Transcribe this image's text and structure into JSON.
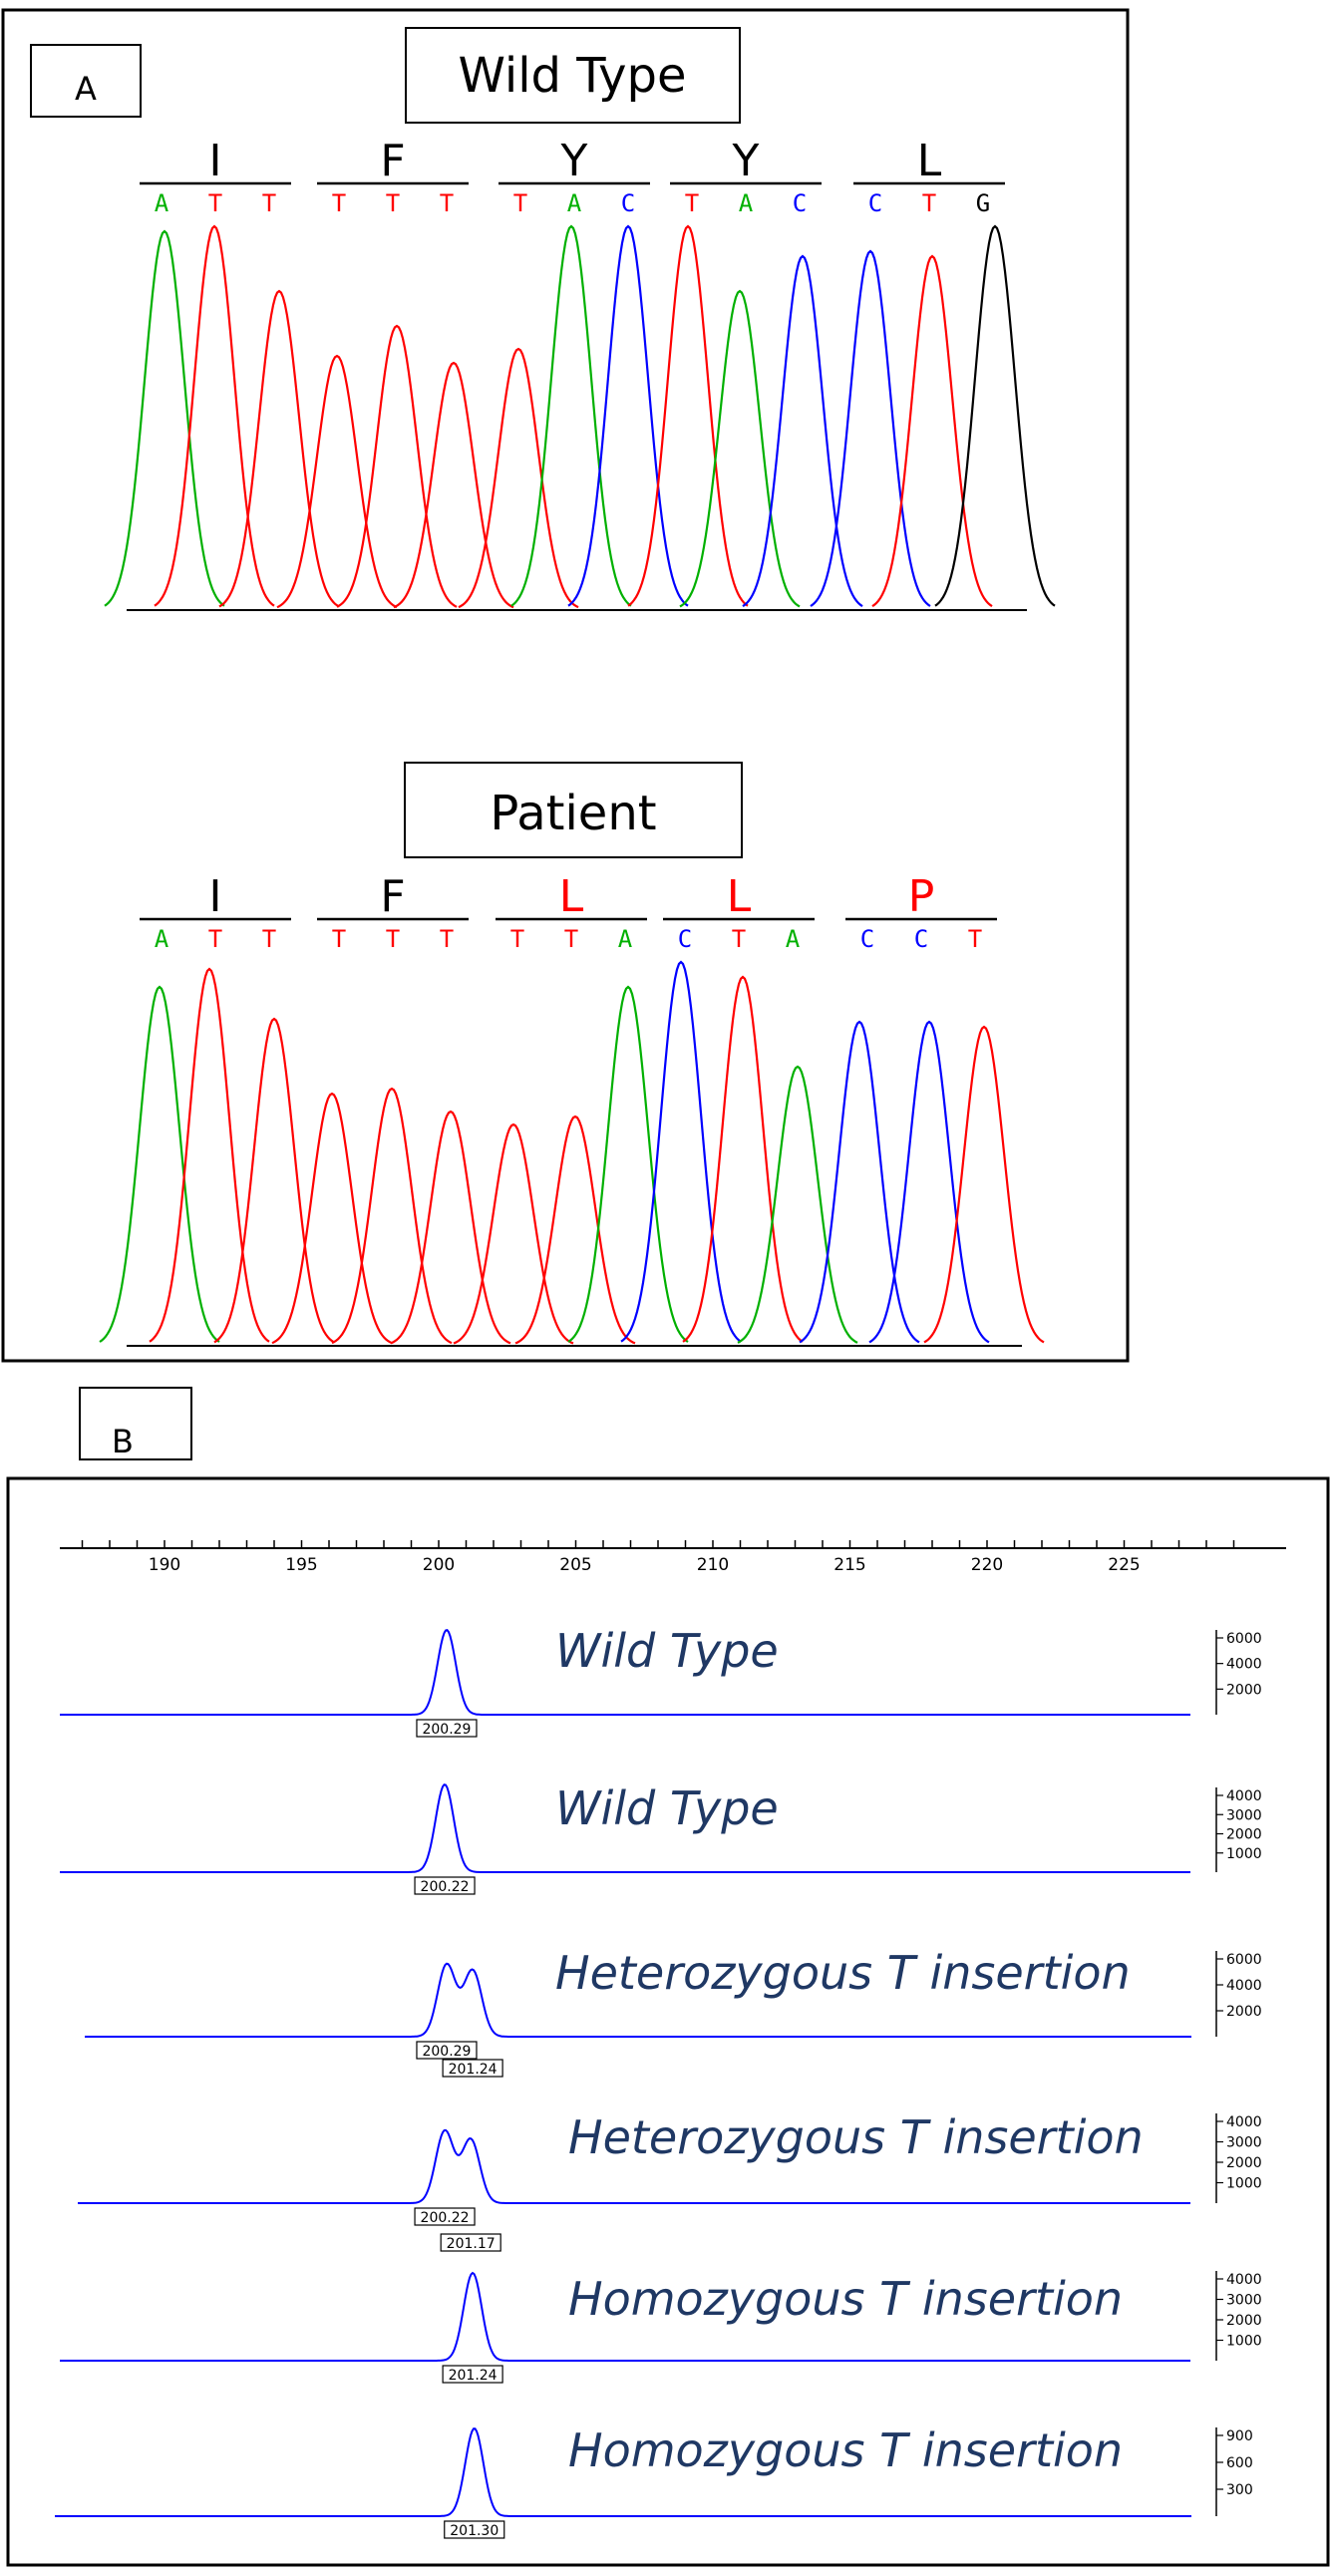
{
  "panel_a": {
    "label": "A",
    "wild_type": {
      "title": "Wild Type",
      "codons": [
        {
          "aa": "I",
          "color": "#000000",
          "bases": [
            "A",
            "T",
            "T"
          ]
        },
        {
          "aa": "F",
          "color": "#000000",
          "bases": [
            "T",
            "T",
            "T"
          ]
        },
        {
          "aa": "Y",
          "color": "#000000",
          "bases": [
            "T",
            "A",
            "C"
          ]
        },
        {
          "aa": "Y",
          "color": "#000000",
          "bases": [
            "T",
            "A",
            "C"
          ]
        },
        {
          "aa": "L",
          "color": "#000000",
          "bases": [
            "C",
            "T",
            "G"
          ]
        }
      ]
    },
    "patient": {
      "title": "Patient",
      "codons": [
        {
          "aa": "I",
          "color": "#000000",
          "bases": [
            "A",
            "T",
            "T"
          ]
        },
        {
          "aa": "F",
          "color": "#000000",
          "bases": [
            "T",
            "T",
            "T"
          ]
        },
        {
          "aa": "L",
          "color": "#ff0000",
          "bases": [
            "T",
            "T",
            "A"
          ]
        },
        {
          "aa": "L",
          "color": "#ff0000",
          "bases": [
            "C",
            "T",
            "A"
          ]
        },
        {
          "aa": "P",
          "color": "#ff0000",
          "bases": [
            "C",
            "C",
            "T"
          ]
        }
      ]
    },
    "base_colors": {
      "A": "#00b000",
      "T": "#ff0000",
      "C": "#0000ff",
      "G": "#000000"
    }
  },
  "panel_b": {
    "label": "B",
    "axis": {
      "ticks": [
        "190",
        "195",
        "200",
        "205",
        "210",
        "215",
        "220",
        "225"
      ],
      "min": 187,
      "max": 229
    },
    "trace_color": "#0000ff",
    "label_color": "#1f3864",
    "traces": [
      {
        "label": "Wild Type",
        "peaks": [
          {
            "x": 200.29,
            "h": 1.0
          }
        ],
        "peak_labels": [
          "200.29"
        ],
        "y_ticks": [
          "6000",
          "4000",
          "2000"
        ]
      },
      {
        "label": "Wild Type",
        "peaks": [
          {
            "x": 200.22,
            "h": 1.0
          }
        ],
        "peak_labels": [
          "200.22"
        ],
        "y_ticks": [
          "4000",
          "3000",
          "2000",
          "1000"
        ]
      },
      {
        "label": "Heterozygous T insertion",
        "peaks": [
          {
            "x": 200.29,
            "h": 0.85
          },
          {
            "x": 201.24,
            "h": 0.78
          }
        ],
        "peak_labels": [
          "200.29",
          "201.24"
        ],
        "y_ticks": [
          "6000",
          "4000",
          "2000"
        ]
      },
      {
        "label": "Heterozygous T insertion",
        "peaks": [
          {
            "x": 200.22,
            "h": 0.85
          },
          {
            "x": 201.17,
            "h": 0.75
          }
        ],
        "peak_labels": [
          "200.22",
          "201.17"
        ],
        "y_ticks": [
          "4000",
          "3000",
          "2000",
          "1000"
        ]
      },
      {
        "label": "Homozygous T insertion",
        "peaks": [
          {
            "x": 201.24,
            "h": 1.0
          }
        ],
        "peak_labels": [
          "201.24"
        ],
        "y_ticks": [
          "4000",
          "3000",
          "2000",
          "1000"
        ]
      },
      {
        "label": "Homozygous T insertion",
        "peaks": [
          {
            "x": 201.3,
            "h": 1.0
          }
        ],
        "peak_labels": [
          "201.30"
        ],
        "y_ticks": [
          "900",
          "600",
          "300"
        ]
      }
    ]
  }
}
